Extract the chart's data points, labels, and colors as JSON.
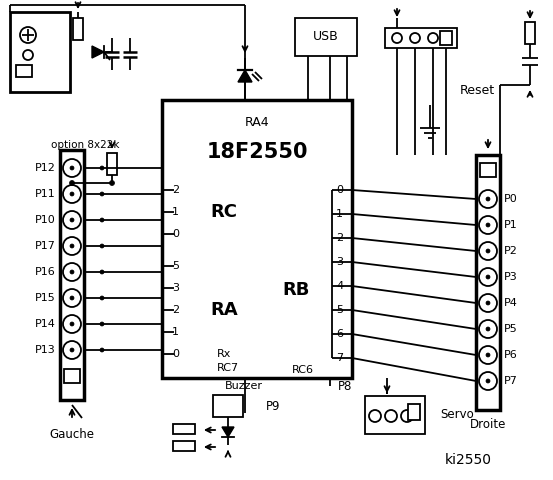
{
  "title": "ki2550",
  "bg_color": "#ffffff",
  "ic_label": "18F2550",
  "ic_sublabel": "RA4",
  "rc_label": "RC",
  "ra_label": "RA",
  "rb_label": "RB",
  "rx_label": "Rx",
  "rc7_label": "RC7",
  "rc6_label": "RC6",
  "usb_label": "USB",
  "reset_label": "Reset",
  "gauche_label": "Gauche",
  "droite_label": "Droite",
  "servo_label": "Servo",
  "buzzer_label": "Buzzer",
  "option_label": "option 8x22k",
  "p9_label": "P9",
  "p8_label": "P8",
  "left_pins": [
    "P12",
    "P11",
    "P10",
    "P17",
    "P16",
    "P15",
    "P14",
    "P13"
  ],
  "rc_nums": [
    "2",
    "1",
    "0"
  ],
  "ra_nums": [
    "5",
    "3",
    "2",
    "1",
    "0"
  ],
  "right_pins": [
    "P0",
    "P1",
    "P2",
    "P3",
    "P4",
    "P5",
    "P6",
    "P7"
  ],
  "rb_nums": [
    "0",
    "1",
    "2",
    "3",
    "4",
    "5",
    "6",
    "7"
  ]
}
